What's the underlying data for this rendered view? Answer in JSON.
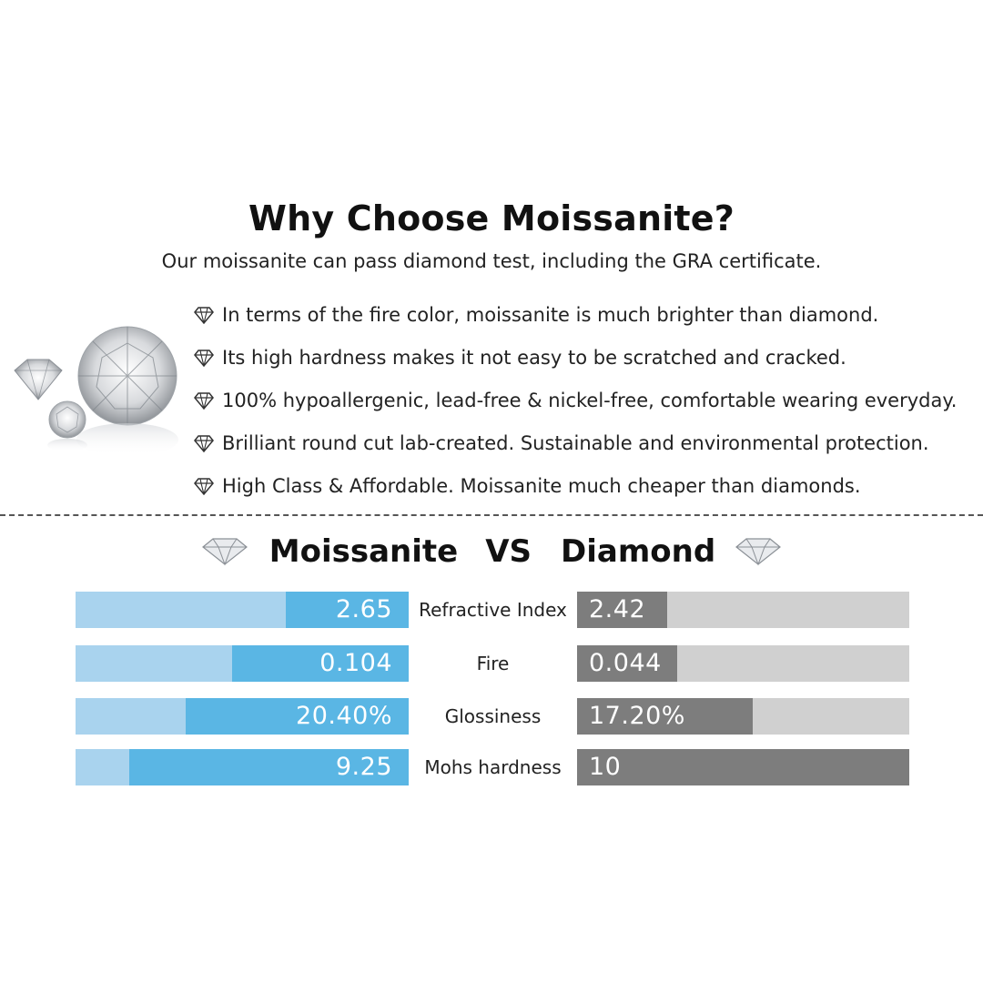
{
  "header": {
    "title": "Why Choose Moissanite?",
    "subtitle": "Our moissanite can pass diamond test, including the GRA certificate."
  },
  "features": [
    "In terms of the fire color, moissanite is much brighter than diamond.",
    "Its high hardness makes it not easy to be scratched and cracked.",
    "100% hypoallergenic, lead-free & nickel-free, comfortable wearing everyday.",
    "Brilliant round cut lab-created. Sustainable and environmental protection.",
    "High Class & Affordable. Moissanite much cheaper than diamonds."
  ],
  "comparison": {
    "left_name": "Moissanite",
    "vs": "VS",
    "right_name": "Diamond",
    "colors": {
      "moissanite_track": "#a9d3ee",
      "moissanite_fill": "#5ab6e4",
      "diamond_track": "#d0d0d0",
      "diamond_fill": "#7d7d7d"
    },
    "rows": [
      {
        "label": "Refractive Index",
        "moissanite": "2.65",
        "moissanite_fill": 0.37,
        "diamond": "2.42",
        "diamond_fill": 0.27
      },
      {
        "label": "Fire",
        "moissanite": "0.104",
        "moissanite_fill": 0.53,
        "diamond": "0.044",
        "diamond_fill": 0.3
      },
      {
        "label": "Glossiness",
        "moissanite": "20.40%",
        "moissanite_fill": 0.67,
        "diamond": "17.20%",
        "diamond_fill": 0.53
      },
      {
        "label": "Mohs hardness",
        "moissanite": "9.25",
        "moissanite_fill": 0.84,
        "diamond": "10",
        "diamond_fill": 1.0
      }
    ]
  }
}
